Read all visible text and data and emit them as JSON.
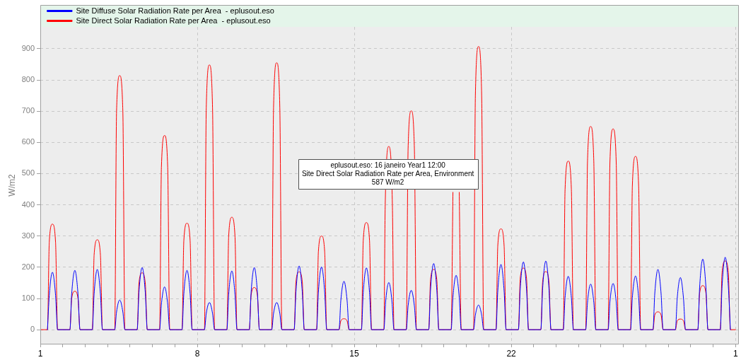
{
  "chart_data": {
    "type": "line",
    "ylabel": "W/m2",
    "xlim": [
      "--01-01T00:00",
      "--02-01T03:36"
    ],
    "xticks": [
      {
        "value": "--01-01",
        "label": "1"
      },
      {
        "value": "--01-02",
        "label": null
      },
      {
        "value": "--01-03",
        "label": null
      },
      {
        "value": "--01-04",
        "label": null
      },
      {
        "value": "--01-05",
        "label": null
      },
      {
        "value": "--01-06",
        "label": null
      },
      {
        "value": "--01-07",
        "label": null
      },
      {
        "value": "--01-08",
        "label": "8"
      },
      {
        "value": "--01-09",
        "label": null
      },
      {
        "value": "--01-10",
        "label": null
      },
      {
        "value": "--01-11",
        "label": null
      },
      {
        "value": "--01-12",
        "label": null
      },
      {
        "value": "--01-13",
        "label": null
      },
      {
        "value": "--01-14",
        "label": null
      },
      {
        "value": "--01-15",
        "label": "15"
      },
      {
        "value": "--01-16",
        "label": null
      },
      {
        "value": "--01-17",
        "label": null
      },
      {
        "value": "--01-18",
        "label": null
      },
      {
        "value": "--01-19",
        "label": null
      },
      {
        "value": "--01-20",
        "label": null
      },
      {
        "value": "--01-21",
        "label": null
      },
      {
        "value": "--01-22",
        "label": "22"
      },
      {
        "value": "--01-23",
        "label": null
      },
      {
        "value": "--01-24",
        "label": null
      },
      {
        "value": "--01-25",
        "label": null
      },
      {
        "value": "--01-26",
        "label": null
      },
      {
        "value": "--01-27",
        "label": null
      },
      {
        "value": "--01-28",
        "label": null
      },
      {
        "value": "--01-29",
        "label": null
      },
      {
        "value": "--01-30",
        "label": null
      },
      {
        "value": "--01-31",
        "label": null
      },
      {
        "value": "--02-01",
        "label": "1"
      }
    ],
    "ylim": [
      -45,
      970
    ],
    "yticks": [
      0,
      100,
      200,
      300,
      400,
      500,
      600,
      700,
      800,
      900
    ],
    "grid": true,
    "legend": "top left",
    "marker": "none",
    "line_style": "solid",
    "series": [
      {
        "name": "Site Diffuse Solar Radiation Rate per Area  - eplusout.eso",
        "color": "#0000ff",
        "x": [
          "--01-01T07:40",
          "--01-01T09:36",
          "--01-01T13:00",
          "--01-01T16:20",
          "--01-01T18:30",
          "--01-02T07:40",
          "--01-02T09:36",
          "--01-02T13:00",
          "--01-02T16:20",
          "--01-02T18:30",
          "--01-03T07:40",
          "--01-03T09:36",
          "--01-03T13:00",
          "--01-03T16:20",
          "--01-03T18:30",
          "--01-04T07:40",
          "--01-04T09:36",
          "--01-04T13:00",
          "--01-04T16:20",
          "--01-04T18:30",
          "--01-05T07:40",
          "--01-05T09:36",
          "--01-05T13:00",
          "--01-05T16:20",
          "--01-05T18:30",
          "--01-06T07:40",
          "--01-06T09:36",
          "--01-06T13:00",
          "--01-06T16:20",
          "--01-06T18:30",
          "--01-07T07:40",
          "--01-07T09:36",
          "--01-07T13:00",
          "--01-07T16:20",
          "--01-07T18:30",
          "--01-08T07:40",
          "--01-08T09:36",
          "--01-08T13:00",
          "--01-08T16:20",
          "--01-08T18:30",
          "--01-09T07:40",
          "--01-09T09:36",
          "--01-09T13:00",
          "--01-09T16:20",
          "--01-09T18:30",
          "--01-10T07:40",
          "--01-10T09:36",
          "--01-10T13:00",
          "--01-10T16:20",
          "--01-10T18:30",
          "--01-11T07:40",
          "--01-11T09:36",
          "--01-11T13:00",
          "--01-11T16:20",
          "--01-11T18:30",
          "--01-12T07:40",
          "--01-12T09:36",
          "--01-12T13:00",
          "--01-12T16:20",
          "--01-12T18:30",
          "--01-13T07:40",
          "--01-13T09:36",
          "--01-13T13:00",
          "--01-13T16:20",
          "--01-13T18:30",
          "--01-14T07:40",
          "--01-14T09:36",
          "--01-14T13:00",
          "--01-14T16:20",
          "--01-14T18:30",
          "--01-15T07:40",
          "--01-15T09:36",
          "--01-15T13:00",
          "--01-15T16:20",
          "--01-15T18:30",
          "--01-16T07:40",
          "--01-16T09:36",
          "--01-16T13:00",
          "--01-16T16:20",
          "--01-16T18:30",
          "--01-17T07:40",
          "--01-17T09:36",
          "--01-17T13:00",
          "--01-17T16:20",
          "--01-17T18:30",
          "--01-18T07:40",
          "--01-18T09:36",
          "--01-18T13:00",
          "--01-18T16:20",
          "--01-18T18:30",
          "--01-19T07:40",
          "--01-19T09:36",
          "--01-19T13:00",
          "--01-19T16:20",
          "--01-19T18:30",
          "--01-20T07:40",
          "--01-20T09:36",
          "--01-20T13:00",
          "--01-20T16:20",
          "--01-20T18:30",
          "--01-21T07:40",
          "--01-21T09:36",
          "--01-21T13:00",
          "--01-21T16:20",
          "--01-21T18:30",
          "--01-22T07:40",
          "--01-22T09:36",
          "--01-22T13:00",
          "--01-22T16:20",
          "--01-22T18:30",
          "--01-23T07:40",
          "--01-23T09:36",
          "--01-23T13:00",
          "--01-23T16:20",
          "--01-23T18:30",
          "--01-24T07:40",
          "--01-24T09:36",
          "--01-24T13:00",
          "--01-24T16:20",
          "--01-24T18:30",
          "--01-25T07:40",
          "--01-25T09:36",
          "--01-25T13:00",
          "--01-25T16:20",
          "--01-25T18:30",
          "--01-26T07:40",
          "--01-26T09:36",
          "--01-26T13:00",
          "--01-26T16:20",
          "--01-26T18:30",
          "--01-27T07:40",
          "--01-27T09:36",
          "--01-27T13:00",
          "--01-27T16:20",
          "--01-27T18:30",
          "--01-28T07:40",
          "--01-28T09:36",
          "--01-28T13:00",
          "--01-28T16:20",
          "--01-28T18:30",
          "--01-29T07:40",
          "--01-29T09:36",
          "--01-29T13:00",
          "--01-29T16:20",
          "--01-29T18:30",
          "--01-30T07:40",
          "--01-30T09:36",
          "--01-30T13:00",
          "--01-30T16:20",
          "--01-30T18:30",
          "--01-31T07:40",
          "--01-31T09:36",
          "--01-31T13:00",
          "--01-31T16:20",
          "--01-31T18:30"
        ],
        "values": [
          0,
          110,
          184,
          110,
          0,
          0,
          115,
          190,
          115,
          0,
          0,
          115,
          193,
          115,
          0,
          0,
          57,
          95,
          57,
          0,
          0,
          120,
          199,
          120,
          0,
          0,
          82,
          137,
          82,
          0,
          0,
          115,
          190,
          115,
          0,
          0,
          52,
          87,
          52,
          0,
          0,
          113,
          188,
          113,
          0,
          0,
          120,
          199,
          120,
          0,
          0,
          52,
          87,
          52,
          0,
          0,
          122,
          204,
          122,
          0,
          0,
          120,
          201,
          120,
          0,
          0,
          93,
          155,
          93,
          0,
          0,
          119,
          198,
          119,
          0,
          0,
          91,
          151,
          91,
          0,
          0,
          76,
          126,
          76,
          0,
          0,
          127,
          212,
          127,
          0,
          0,
          104,
          174,
          104,
          0,
          0,
          47,
          79,
          47,
          0,
          0,
          125,
          209,
          125,
          0,
          0,
          130,
          217,
          130,
          0,
          0,
          132,
          220,
          132,
          0,
          0,
          103,
          171,
          103,
          0,
          0,
          88,
          146,
          88,
          0,
          0,
          89,
          148,
          89,
          0,
          0,
          103,
          172,
          103,
          0,
          0,
          116,
          193,
          116,
          0,
          0,
          100,
          167,
          100,
          0,
          0,
          136,
          226,
          136,
          0,
          0,
          139,
          232,
          139,
          0
        ]
      },
      {
        "name": "Site Direct Solar Radiation Rate per Area  - eplusout.eso",
        "color": "#ff0000",
        "x": [
          "--01-01T01:00",
          "--01-01T07:40",
          "--01-01T09:36",
          "--01-01T13:00",
          "--01-01T16:20",
          "--01-01T18:30",
          "--01-02T07:40",
          "--01-02T09:36",
          "--01-02T13:00",
          "--01-02T16:20",
          "--01-02T18:30",
          "--01-03T07:40",
          "--01-03T09:36",
          "--01-03T13:00",
          "--01-03T16:20",
          "--01-03T18:30",
          "--01-04T07:40",
          "--01-04T09:36",
          "--01-04T13:00",
          "--01-04T16:20",
          "--01-04T18:30",
          "--01-05T07:40",
          "--01-05T09:36",
          "--01-05T13:00",
          "--01-05T16:20",
          "--01-05T18:30",
          "--01-06T07:40",
          "--01-06T09:36",
          "--01-06T13:00",
          "--01-06T16:20",
          "--01-06T18:30",
          "--01-07T07:40",
          "--01-07T09:36",
          "--01-07T13:00",
          "--01-07T16:20",
          "--01-07T18:30",
          "--01-08T07:40",
          "--01-08T09:36",
          "--01-08T13:00",
          "--01-08T16:20",
          "--01-08T18:30",
          "--01-09T07:40",
          "--01-09T09:36",
          "--01-09T13:00",
          "--01-09T16:20",
          "--01-09T18:30",
          "--01-10T07:40",
          "--01-10T09:36",
          "--01-10T13:00",
          "--01-10T16:20",
          "--01-10T18:30",
          "--01-11T07:40",
          "--01-11T09:36",
          "--01-11T13:00",
          "--01-11T16:20",
          "--01-11T18:30",
          "--01-12T07:40",
          "--01-12T09:36",
          "--01-12T13:00",
          "--01-12T16:20",
          "--01-12T18:30",
          "--01-13T07:40",
          "--01-13T09:36",
          "--01-13T13:00",
          "--01-13T16:20",
          "--01-13T18:30",
          "--01-14T07:40",
          "--01-14T09:36",
          "--01-14T13:00",
          "--01-14T16:20",
          "--01-14T18:30",
          "--01-15T07:40",
          "--01-15T09:36",
          "--01-15T13:00",
          "--01-15T16:20",
          "--01-15T18:30",
          "--01-16T07:40",
          "--01-16T09:07",
          "--01-16T13:00",
          "--01-16T16:48",
          "--01-16T18:30",
          "--01-17T07:40",
          "--01-17T09:36",
          "--01-17T13:00",
          "--01-17T16:20",
          "--01-17T18:30",
          "--01-18T07:40",
          "--01-18T09:36",
          "--01-18T13:00",
          "--01-18T16:20",
          "--01-18T18:30",
          "--01-19T07:40",
          "--01-19T09:36",
          "--01-19T13:00",
          "--01-19T16:20",
          "--01-19T18:30",
          "--01-20T07:40",
          "--01-20T09:36",
          "--01-20T13:00",
          "--01-20T16:20",
          "--01-20T18:30",
          "--01-21T07:40",
          "--01-21T09:36",
          "--01-21T13:00",
          "--01-21T16:20",
          "--01-21T18:30",
          "--01-22T07:40",
          "--01-22T09:36",
          "--01-22T13:00",
          "--01-22T16:20",
          "--01-22T18:30",
          "--01-23T07:40",
          "--01-23T09:36",
          "--01-23T13:00",
          "--01-23T16:20",
          "--01-23T18:30",
          "--01-24T07:40",
          "--01-24T09:36",
          "--01-24T13:00",
          "--01-24T16:20",
          "--01-24T18:30",
          "--01-25T07:40",
          "--01-25T09:36",
          "--01-25T13:00",
          "--01-25T16:20",
          "--01-25T18:30",
          "--01-26T07:40",
          "--01-26T09:36",
          "--01-26T13:00",
          "--01-26T16:20",
          "--01-26T18:30",
          "--01-27T07:40",
          "--01-27T09:36",
          "--01-27T13:00",
          "--01-27T16:20",
          "--01-27T18:30",
          "--01-28T07:40",
          "--01-28T09:36",
          "--01-28T13:00",
          "--01-28T16:20",
          "--01-28T18:30",
          "--01-29T07:40",
          "--01-29T09:36",
          "--01-29T13:00",
          "--01-29T16:20",
          "--01-29T18:30",
          "--01-30T07:40",
          "--01-30T09:36",
          "--01-30T13:00",
          "--01-30T16:20",
          "--01-30T18:30",
          "--01-31T07:40",
          "--01-31T09:36",
          "--01-31T13:00",
          "--01-31T16:20",
          "--01-31T18:30",
          "--02-01T00:00"
        ],
        "values": [
          0,
          0,
          280,
          338,
          280,
          0,
          0,
          100,
          123,
          100,
          0,
          0,
          240,
          288,
          240,
          0,
          0,
          700,
          814,
          700,
          0,
          0,
          150,
          182,
          150,
          0,
          0,
          520,
          622,
          520,
          0,
          0,
          285,
          341,
          285,
          0,
          0,
          710,
          848,
          710,
          0,
          0,
          300,
          360,
          300,
          0,
          0,
          110,
          135,
          110,
          0,
          0,
          710,
          855,
          710,
          0,
          0,
          155,
          185,
          155,
          0,
          0,
          250,
          300,
          250,
          0,
          0,
          28,
          35,
          28,
          0,
          0,
          285,
          343,
          285,
          0,
          0,
          400,
          587,
          400,
          0,
          0,
          580,
          701,
          580,
          0,
          0,
          160,
          193,
          160,
          0,
          0,
          440,
          null,
          440,
          0,
          0,
          750,
          907,
          750,
          0,
          0,
          270,
          323,
          270,
          0,
          0,
          165,
          197,
          165,
          0,
          0,
          155,
          186,
          155,
          0,
          0,
          450,
          540,
          450,
          0,
          0,
          540,
          651,
          540,
          0,
          0,
          535,
          643,
          535,
          0,
          0,
          460,
          555,
          460,
          0,
          0,
          47,
          57,
          47,
          0,
          0,
          28,
          34,
          28,
          0,
          0,
          117,
          141,
          117,
          0,
          0,
          183,
          220,
          183,
          0,
          0
        ]
      }
    ],
    "annotations": [
      {
        "text": "eplusout.eso: 16 janeiro Year1 12:00\nSite Direct Solar Radiation Rate per Area, Environment\n587 W/m2",
        "x": "--01-16T12:00",
        "y": 587
      }
    ]
  }
}
